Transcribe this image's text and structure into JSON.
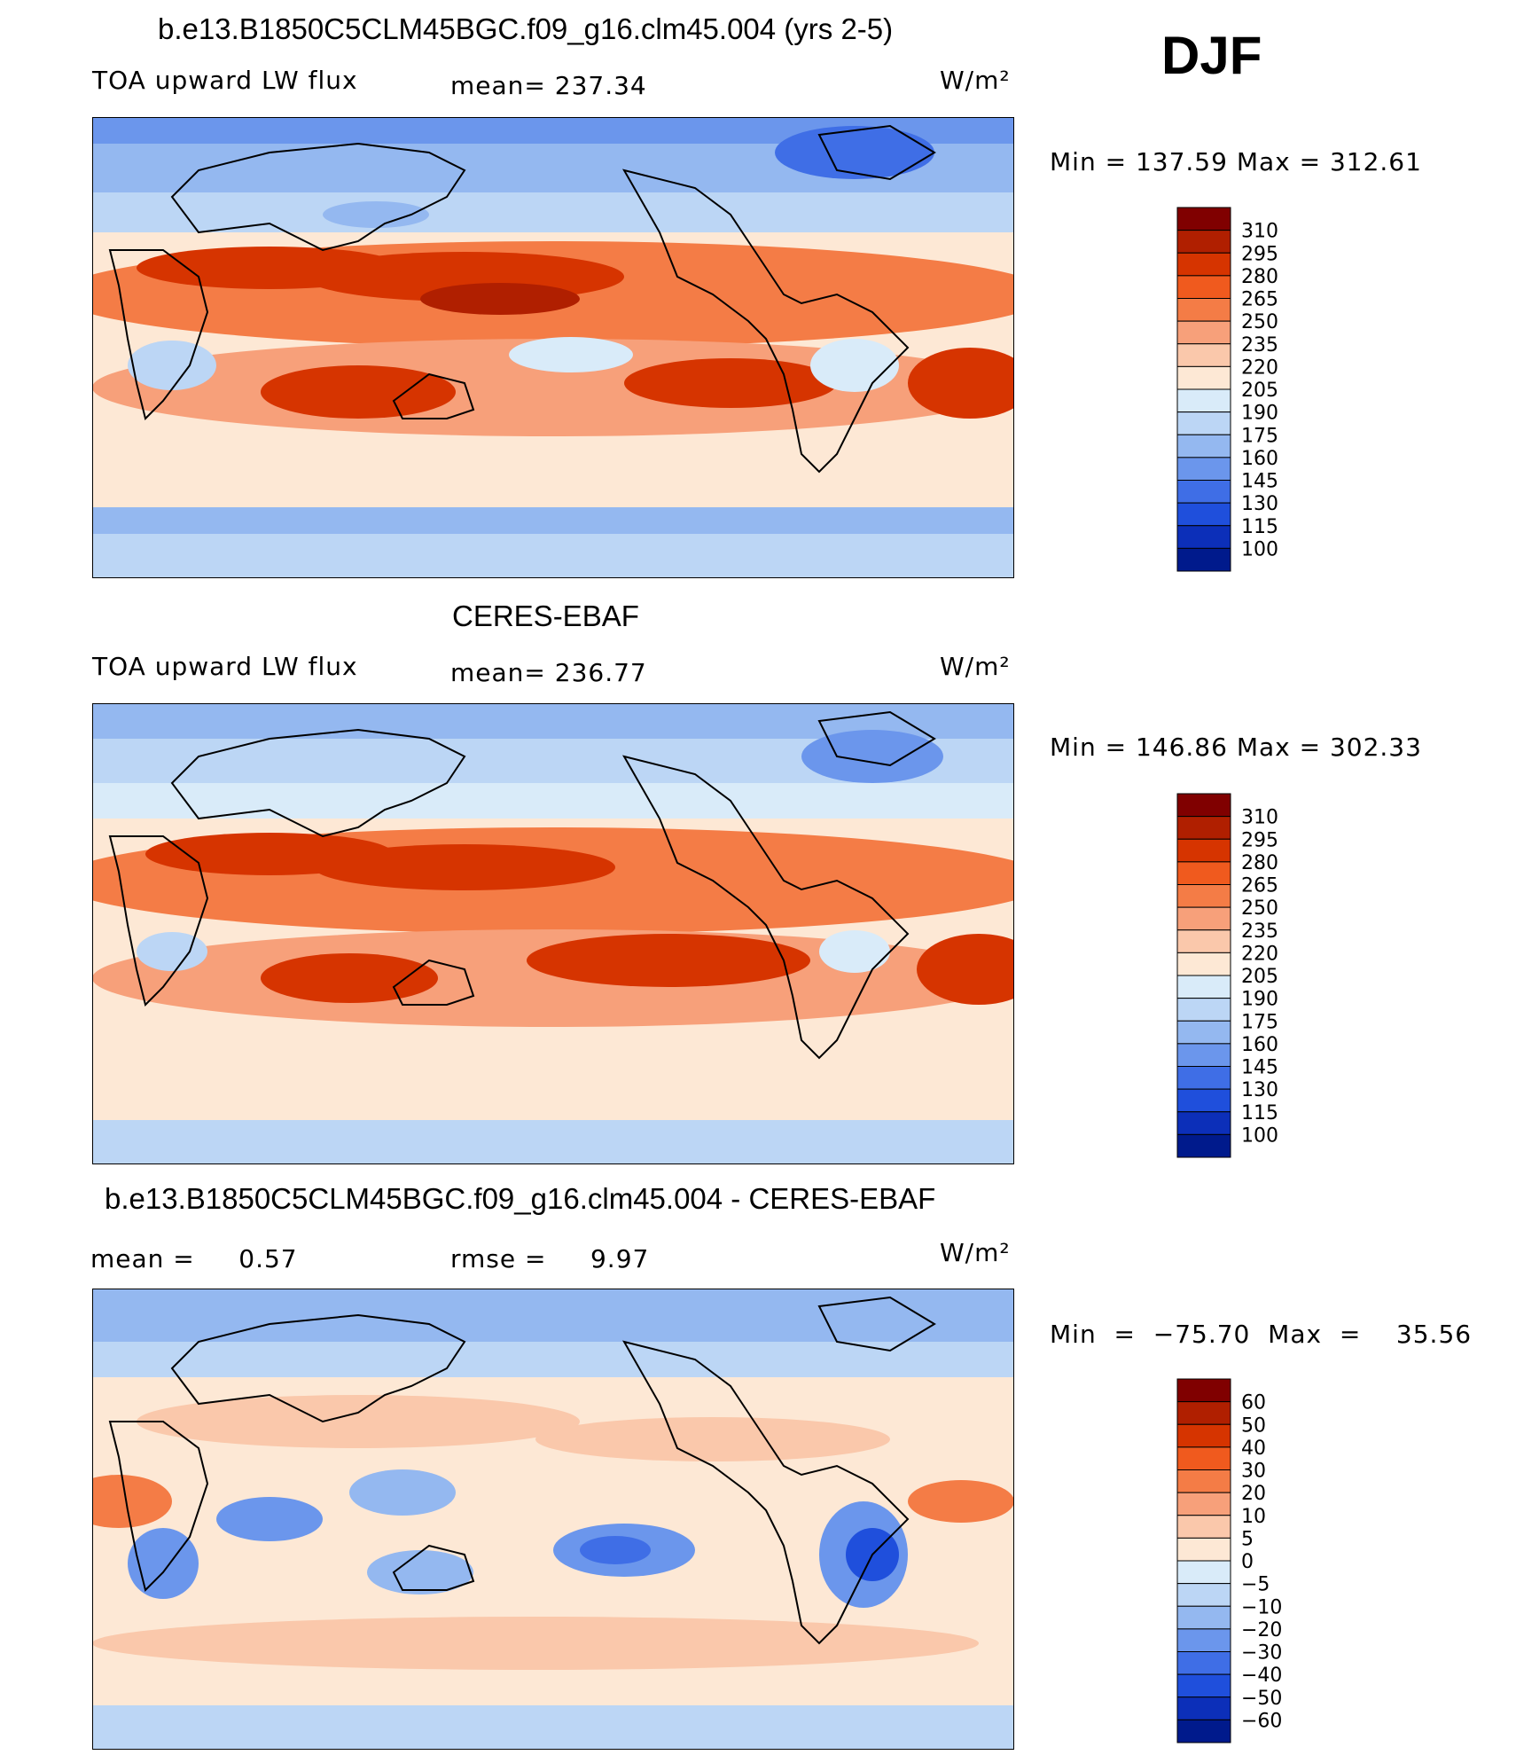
{
  "season": "DJF",
  "units_label": "W/m²",
  "panels": [
    {
      "title": "b.e13.B1850C5CLM45BGC.f09_g16.clm45.004 (yrs 2-5)",
      "left_label": "TOA upward LW flux",
      "mid_label": "mean= 237.34",
      "units": "W/m²",
      "minmax": "Min  =  137.59  Max  =  312.61",
      "colorbar": {
        "labels": [
          "310",
          "295",
          "280",
          "265",
          "250",
          "235",
          "220",
          "205",
          "190",
          "175",
          "160",
          "145",
          "130",
          "115",
          "100"
        ],
        "colors": [
          "#800000",
          "#b01f00",
          "#d63400",
          "#f05a1e",
          "#f47c46",
          "#f7a07a",
          "#fac8ab",
          "#fde8d5",
          "#d9ebf9",
          "#bcd6f5",
          "#94b8f0",
          "#6b96ec",
          "#3f6ee6",
          "#1f4fdc",
          "#0c2fb9",
          "#001a8c"
        ]
      }
    },
    {
      "title": "CERES-EBAF",
      "left_label": "TOA upward LW flux",
      "mid_label": "mean= 236.77",
      "units": "W/m²",
      "minmax": "Min  =  146.86  Max  =  302.33",
      "colorbar": {
        "labels": [
          "310",
          "295",
          "280",
          "265",
          "250",
          "235",
          "220",
          "205",
          "190",
          "175",
          "160",
          "145",
          "130",
          "115",
          "100"
        ],
        "colors": [
          "#800000",
          "#b01f00",
          "#d63400",
          "#f05a1e",
          "#f47c46",
          "#f7a07a",
          "#fac8ab",
          "#fde8d5",
          "#d9ebf9",
          "#bcd6f5",
          "#94b8f0",
          "#6b96ec",
          "#3f6ee6",
          "#1f4fdc",
          "#0c2fb9",
          "#001a8c"
        ]
      }
    },
    {
      "title": "b.e13.B1850C5CLM45BGC.f09_g16.clm45.004 - CERES-EBAF",
      "left_label": "mean =     0.57",
      "mid_label": "rmse =     9.97",
      "units": "W/m²",
      "minmax": "Min  =  −75.70  Max  =    35.56",
      "colorbar": {
        "labels": [
          "60",
          "50",
          "40",
          "30",
          "20",
          "10",
          "5",
          "0",
          "−5",
          "−10",
          "−20",
          "−30",
          "−40",
          "−50",
          "−60"
        ],
        "colors": [
          "#800000",
          "#b01f00",
          "#d63400",
          "#f05a1e",
          "#f47c46",
          "#f7a07a",
          "#fac8ab",
          "#fde8d5",
          "#d9ebf9",
          "#bcd6f5",
          "#94b8f0",
          "#6b96ec",
          "#3f6ee6",
          "#1f4fdc",
          "#0c2fb9",
          "#001a8c"
        ]
      }
    }
  ]
}
